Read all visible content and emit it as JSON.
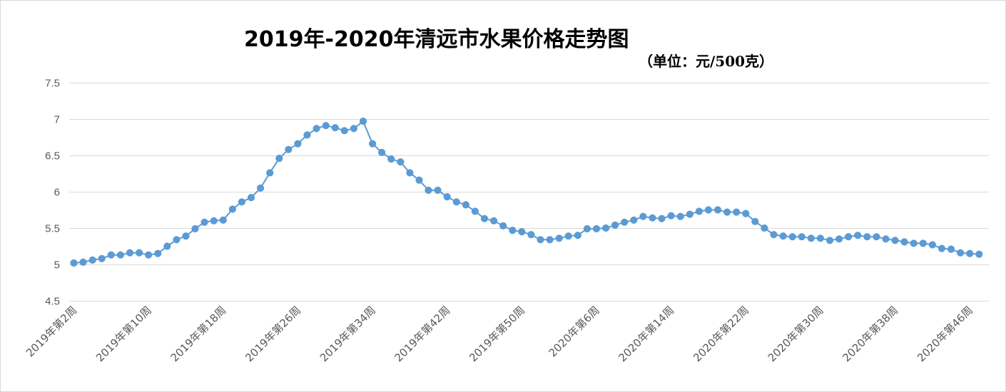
{
  "chart_data": {
    "type": "line",
    "title": "2019年-2020年清远市水果价格走势图",
    "unit_note": "（单位：元/500克）",
    "xlabel": "",
    "ylabel": "",
    "ylim": [
      4.5,
      7.5
    ],
    "yticks": [
      4.5,
      5,
      5.5,
      6,
      6.5,
      7,
      7.5
    ],
    "ytick_labels": [
      "4.5",
      "5",
      "5.5",
      "6",
      "6.5",
      "7",
      "7.5"
    ],
    "grid": true,
    "legend": "none",
    "line_color": "#5b9bd5",
    "x_tick_labels": [
      "2019年第2周",
      "2019年第10周",
      "2019年第18周",
      "2019年第26周",
      "2019年第34周",
      "2019年第42周",
      "2019年第50周",
      "2020年第6周",
      "2020年第14周",
      "2020年第22周",
      "2020年第30周",
      "2020年第38周",
      "2020年第46周"
    ],
    "series": [
      {
        "values": [
          5.02,
          5.03,
          5.06,
          5.08,
          5.13,
          5.13,
          5.16,
          5.16,
          5.13,
          5.15,
          5.25,
          5.34,
          5.39,
          5.49,
          5.58,
          5.6,
          5.61,
          5.76,
          5.86,
          5.92,
          6.05,
          6.26,
          6.46,
          6.58,
          6.66,
          6.78,
          6.87,
          6.91,
          6.88,
          6.84,
          6.87,
          6.97,
          6.66,
          6.54,
          6.45,
          6.41,
          6.26,
          6.16,
          6.02,
          6.02,
          5.93,
          5.86,
          5.82,
          5.73,
          5.63,
          5.6,
          5.53,
          5.47,
          5.45,
          5.41,
          5.34,
          5.34,
          5.36,
          5.39,
          5.4,
          5.49,
          5.49,
          5.5,
          5.54,
          5.58,
          5.61,
          5.66,
          5.64,
          5.63,
          5.67,
          5.66,
          5.69,
          5.73,
          5.75,
          5.75,
          5.72,
          5.72,
          5.7,
          5.59,
          5.5,
          5.41,
          5.39,
          5.38,
          5.38,
          5.36,
          5.36,
          5.33,
          5.35,
          5.38,
          5.4,
          5.38,
          5.38,
          5.35,
          5.33,
          5.31,
          5.29,
          5.29,
          5.27,
          5.22,
          5.21,
          5.16,
          5.15,
          5.14
        ]
      }
    ]
  }
}
